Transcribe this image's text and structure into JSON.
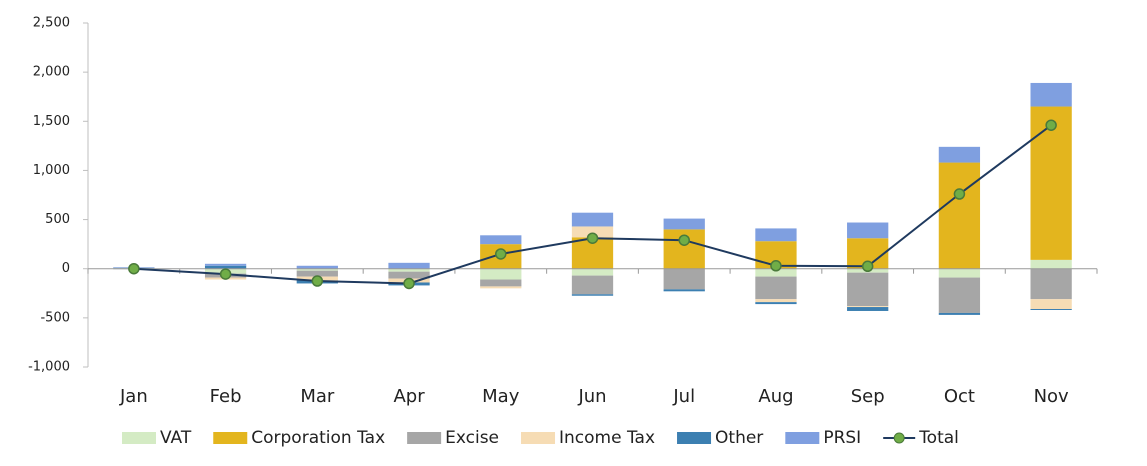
{
  "chart_data": {
    "type": "stacked-bar-line",
    "categories": [
      "Jan",
      "Feb",
      "Mar",
      "Apr",
      "May",
      "Jun",
      "Jul",
      "Aug",
      "Sep",
      "Oct",
      "Nov"
    ],
    "series": [
      {
        "name": "VAT",
        "color": "#d4ebc4",
        "kind": "bar",
        "values": [
          5,
          -50,
          -20,
          -30,
          -110,
          -70,
          0,
          -80,
          -40,
          -90,
          90
        ]
      },
      {
        "name": "Corporation Tax",
        "color": "#e3b51e",
        "kind": "bar",
        "values": [
          0,
          0,
          0,
          0,
          250,
          320,
          400,
          280,
          310,
          1080,
          1560
        ]
      },
      {
        "name": "Excise",
        "color": "#a6a6a6",
        "kind": "bar",
        "values": [
          -5,
          -40,
          -60,
          -70,
          -70,
          -190,
          -210,
          -230,
          -340,
          -360,
          -310
        ]
      },
      {
        "name": "Income Tax",
        "color": "#f6dcb4",
        "kind": "bar",
        "values": [
          0,
          -20,
          -40,
          -40,
          -20,
          110,
          0,
          -30,
          -10,
          0,
          -100
        ]
      },
      {
        "name": "Other",
        "color": "#3c7fb1",
        "kind": "bar",
        "values": [
          5,
          30,
          -30,
          -30,
          0,
          -15,
          -20,
          -20,
          -40,
          -20,
          -10
        ]
      },
      {
        "name": "PRSI",
        "color": "#7f9fe0",
        "kind": "bar",
        "values": [
          5,
          20,
          30,
          60,
          90,
          140,
          110,
          130,
          160,
          160,
          240
        ]
      },
      {
        "name": "Total",
        "color": "#1f3a5f",
        "marker_color": "#70ad47",
        "kind": "line",
        "values": [
          0,
          -55,
          -125,
          -150,
          150,
          310,
          290,
          30,
          25,
          760,
          1460
        ]
      }
    ],
    "ylim": [
      -1000,
      2500
    ],
    "yticks": [
      {
        "value": -1000,
        "label": "-1,000"
      },
      -500,
      0,
      500,
      {
        "value": 1000,
        "label": "1,000"
      },
      {
        "value": 1500,
        "label": "1,500"
      },
      {
        "value": 2000,
        "label": "2,000"
      },
      {
        "value": 2500,
        "label": "2,500"
      }
    ],
    "grid": false,
    "legend": "bottom"
  }
}
